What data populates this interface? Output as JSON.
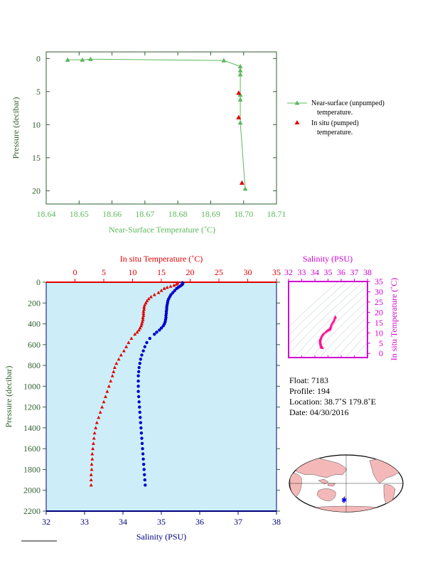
{
  "chart_data": [
    {
      "type": "line",
      "name": "near-surface",
      "xlabel": "Near-Surface Temperature (˚C)",
      "ylabel": "Pressure (decibar)",
      "xlim": [
        18.64,
        18.71
      ],
      "ylim": [
        22,
        -1
      ],
      "xticks": [
        "18.64",
        "18.65",
        "18.66",
        "18.67",
        "18.68",
        "18.69",
        "18.70",
        "18.71"
      ],
      "yticks": [
        "0",
        "5",
        "10",
        "15",
        "20"
      ],
      "series": [
        {
          "name": "Near-surface (unpumped) temperature.",
          "color": "#5cb85c",
          "x": [
            18.6465,
            18.651,
            18.6535,
            18.694,
            18.699,
            18.699,
            18.699,
            18.699,
            18.699,
            18.699,
            18.7005
          ],
          "y": [
            0.2,
            0.2,
            0.1,
            0.3,
            1.2,
            1.8,
            2.4,
            5.5,
            6.2,
            9.7,
            19.7
          ]
        },
        {
          "name": "In situ (pumped) temperature.",
          "color": "#e00000",
          "x": [
            18.6985,
            18.6985,
            18.6995
          ],
          "y": [
            5.2,
            8.9,
            18.8
          ]
        }
      ],
      "legend": {
        "line1a": "Near-surface (unpumped)",
        "line1b": "temperature.",
        "line2a": "In situ (pumped)",
        "line2b": "temperature."
      }
    },
    {
      "type": "line",
      "name": "profile",
      "top_xlabel": "In situ Temperature (˚C)",
      "bottom_xlabel": "Salinity (PSU)",
      "ylabel": "Pressure (decibar)",
      "temp_lim": [
        -5,
        35
      ],
      "sal_lim": [
        32,
        38
      ],
      "ylim": [
        2200,
        0
      ],
      "temp_ticks": [
        "0",
        "5",
        "10",
        "15",
        "20",
        "25",
        "30",
        "35"
      ],
      "sal_ticks": [
        "32",
        "33",
        "34",
        "35",
        "36",
        "37",
        "38"
      ],
      "yticks": [
        "0",
        "200",
        "400",
        "600",
        "800",
        "1000",
        "1200",
        "1400",
        "1600",
        "1800",
        "2000",
        "2200"
      ],
      "temperature": {
        "color": "#e00000",
        "pressure": [
          5,
          10,
          20,
          30,
          40,
          50,
          60,
          80,
          100,
          120,
          140,
          160,
          180,
          200,
          220,
          240,
          260,
          280,
          300,
          320,
          340,
          360,
          380,
          400,
          420,
          440,
          460,
          480,
          500,
          540,
          580,
          620,
          660,
          700,
          740,
          780,
          820,
          860,
          900,
          950,
          1000,
          1050,
          1100,
          1150,
          1200,
          1250,
          1300,
          1350,
          1400,
          1450,
          1500,
          1550,
          1600,
          1650,
          1700,
          1750,
          1800,
          1850,
          1900,
          1950
        ],
        "values": [
          17.8,
          17.8,
          17.6,
          17.2,
          16.6,
          16.0,
          15.5,
          15.0,
          14.5,
          13.8,
          13.2,
          12.8,
          12.5,
          12.3,
          12.1,
          12.0,
          12.0,
          11.9,
          11.9,
          11.9,
          11.8,
          11.8,
          11.7,
          11.6,
          11.5,
          11.3,
          11.1,
          10.8,
          10.4,
          9.8,
          9.3,
          8.9,
          8.5,
          8.0,
          7.6,
          7.2,
          6.9,
          6.7,
          6.5,
          6.2,
          5.9,
          5.6,
          5.3,
          5.0,
          4.7,
          4.4,
          4.1,
          3.8,
          3.6,
          3.4,
          3.3,
          3.2,
          3.1,
          3.0,
          3.0,
          2.9,
          2.9,
          2.8,
          2.8,
          2.8
        ]
      },
      "salinity": {
        "color": "#0000cc",
        "pressure": [
          5,
          10,
          20,
          30,
          40,
          50,
          60,
          80,
          100,
          120,
          140,
          160,
          180,
          200,
          220,
          240,
          260,
          280,
          300,
          320,
          340,
          360,
          380,
          400,
          420,
          440,
          460,
          480,
          500,
          540,
          580,
          620,
          660,
          700,
          740,
          780,
          820,
          860,
          900,
          950,
          1000,
          1050,
          1100,
          1150,
          1200,
          1250,
          1300,
          1350,
          1400,
          1450,
          1500,
          1550,
          1600,
          1650,
          1700,
          1750,
          1800,
          1850,
          1900,
          1950
        ],
        "values": [
          35.55,
          35.56,
          35.55,
          35.52,
          35.48,
          35.44,
          35.4,
          35.35,
          35.3,
          35.25,
          35.22,
          35.19,
          35.17,
          35.16,
          35.15,
          35.14,
          35.14,
          35.13,
          35.13,
          35.12,
          35.12,
          35.11,
          35.1,
          35.08,
          35.05,
          35.0,
          34.95,
          34.88,
          34.82,
          34.7,
          34.62,
          34.57,
          34.53,
          34.49,
          34.46,
          34.44,
          34.42,
          34.41,
          34.4,
          34.4,
          34.4,
          34.4,
          34.41,
          34.42,
          34.43,
          34.44,
          34.45,
          34.46,
          34.47,
          34.48,
          34.49,
          34.5,
          34.51,
          34.52,
          34.53,
          34.54,
          34.55,
          34.56,
          34.57,
          34.58
        ]
      }
    },
    {
      "type": "scatter",
      "name": "ts-diagram",
      "xlabel": "Salinity (PSU)",
      "ylabel": "In situ Temperature (˚C)",
      "xlim": [
        32,
        38
      ],
      "ylim": [
        -2,
        35
      ],
      "xticks": [
        "32",
        "33",
        "34",
        "35",
        "36",
        "37",
        "38"
      ],
      "yticks": [
        "0",
        "5",
        "10",
        "15",
        "20",
        "25",
        "30",
        "35"
      ],
      "color": "#ff1493"
    }
  ],
  "info": {
    "float": "Float:  7183",
    "profile": "Profile:  194",
    "location": "Location:  38.7˚S  179.8˚E",
    "date": "Date:  04/30/2016"
  },
  "colors": {
    "green": "#5cb85c",
    "red": "#e00000",
    "blue": "#0000cc",
    "navy": "#000080",
    "magenta": "#d000d0",
    "panel": "#cdeef8",
    "land": "#f4b8b8"
  }
}
